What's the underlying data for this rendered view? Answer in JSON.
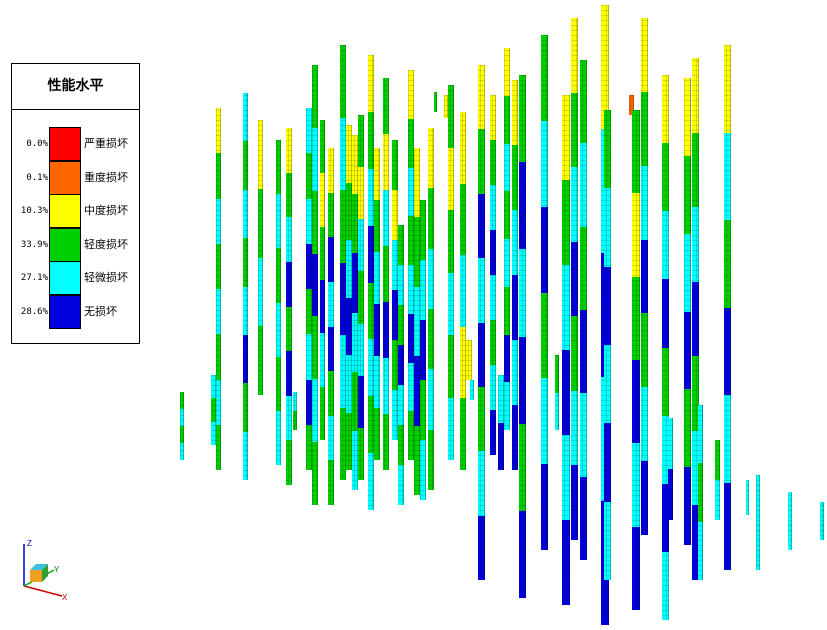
{
  "legend": {
    "title": "性能水平",
    "items": [
      {
        "percent": "0.0%",
        "label": "严重损坏",
        "color": "#ff0000"
      },
      {
        "percent": "0.1%",
        "label": "重度损坏",
        "color": "#ff6600"
      },
      {
        "percent": "10.3%",
        "label": "中度损坏",
        "color": "#ffff00"
      },
      {
        "percent": "33.9%",
        "label": "轻度损坏",
        "color": "#00d000"
      },
      {
        "percent": "27.1%",
        "label": "轻微损坏",
        "color": "#00ffff"
      },
      {
        "percent": "28.6%",
        "label": "无损坏",
        "color": "#0000dd"
      }
    ]
  },
  "axes": {
    "z": "Z",
    "y": "Y",
    "x": "X"
  }
}
